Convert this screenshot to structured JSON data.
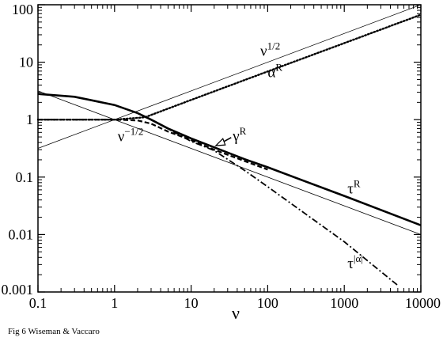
{
  "caption": "Fig 6  Wiseman & Vaccaro",
  "chart_data": {
    "type": "line",
    "xlabel": "ν",
    "ylabel": "",
    "xscale": "log",
    "yscale": "log",
    "xlim": [
      0.1,
      10000
    ],
    "ylim": [
      0.001,
      100
    ],
    "grid": false,
    "legend": "none",
    "x_ticks": [
      {
        "value": 0.1,
        "label": "0.1"
      },
      {
        "value": 1,
        "label": "1"
      },
      {
        "value": 10,
        "label": "10"
      },
      {
        "value": 100,
        "label": "100"
      },
      {
        "value": 1000,
        "label": "1000"
      },
      {
        "value": 10000,
        "label": "10000"
      }
    ],
    "y_ticks": [
      {
        "value": 0.001,
        "label": "0.001"
      },
      {
        "value": 0.01,
        "label": "0.01"
      },
      {
        "value": 0.1,
        "label": "0.1"
      },
      {
        "value": 1,
        "label": "1"
      },
      {
        "value": 10,
        "label": "10"
      },
      {
        "value": 100,
        "label": "100"
      }
    ],
    "series": [
      {
        "label": "ν^1/2",
        "label_main": "ν",
        "label_sup": "1/2",
        "style": "thin",
        "label_at": [
          80,
          13
        ],
        "x": [
          0.1,
          10000
        ],
        "y": [
          0.316,
          100
        ]
      },
      {
        "label": "ν^-1/2",
        "label_main": "ν",
        "label_sup": "−1/2",
        "style": "thin",
        "label_at": [
          1.1,
          0.42
        ],
        "x": [
          0.1,
          10000
        ],
        "y": [
          3.16,
          0.01
        ]
      },
      {
        "label": "α^R",
        "label_main": "α",
        "label_sup": "R",
        "style": "dotted",
        "label_at": [
          100,
          5.5
        ],
        "x": [
          0.1,
          1,
          2.5,
          10,
          100,
          1000,
          10000
        ],
        "y": [
          1,
          1,
          1.1,
          2.2,
          6.9,
          21.5,
          67
        ]
      },
      {
        "label": "γ^R",
        "label_main": "γ",
        "label_sup": "R",
        "style": "dashed",
        "label_at": [
          35,
          0.43
        ],
        "x": [
          0.1,
          1,
          2,
          3,
          5,
          10,
          20,
          50,
          100
        ],
        "y": [
          1,
          1,
          0.97,
          0.85,
          0.62,
          0.44,
          0.3,
          0.19,
          0.135
        ]
      },
      {
        "label": "τ^R",
        "label_main": "τ",
        "label_sup": "R",
        "style": "thick",
        "label_at": [
          1100,
          0.052
        ],
        "x": [
          0.1,
          0.3,
          1,
          2,
          3,
          5,
          10,
          20,
          50,
          100,
          1000,
          10000
        ],
        "y": [
          2.8,
          2.5,
          1.8,
          1.3,
          1.0,
          0.7,
          0.47,
          0.33,
          0.205,
          0.148,
          0.047,
          0.0145
        ]
      },
      {
        "label": "τ^|α|",
        "label_main": "τ",
        "label_sup": "|α|",
        "style": "dashdot",
        "label_at": [
          1100,
          0.0026
        ],
        "x": [
          3,
          10,
          20,
          50,
          100,
          1000,
          5000
        ],
        "y": [
          1.0,
          0.42,
          0.29,
          0.13,
          0.068,
          0.0075,
          0.0013
        ]
      }
    ],
    "annotation": {
      "text": "γ^R arrow",
      "from": [
        35,
        0.43
      ],
      "to": [
        20,
        0.33
      ]
    }
  }
}
